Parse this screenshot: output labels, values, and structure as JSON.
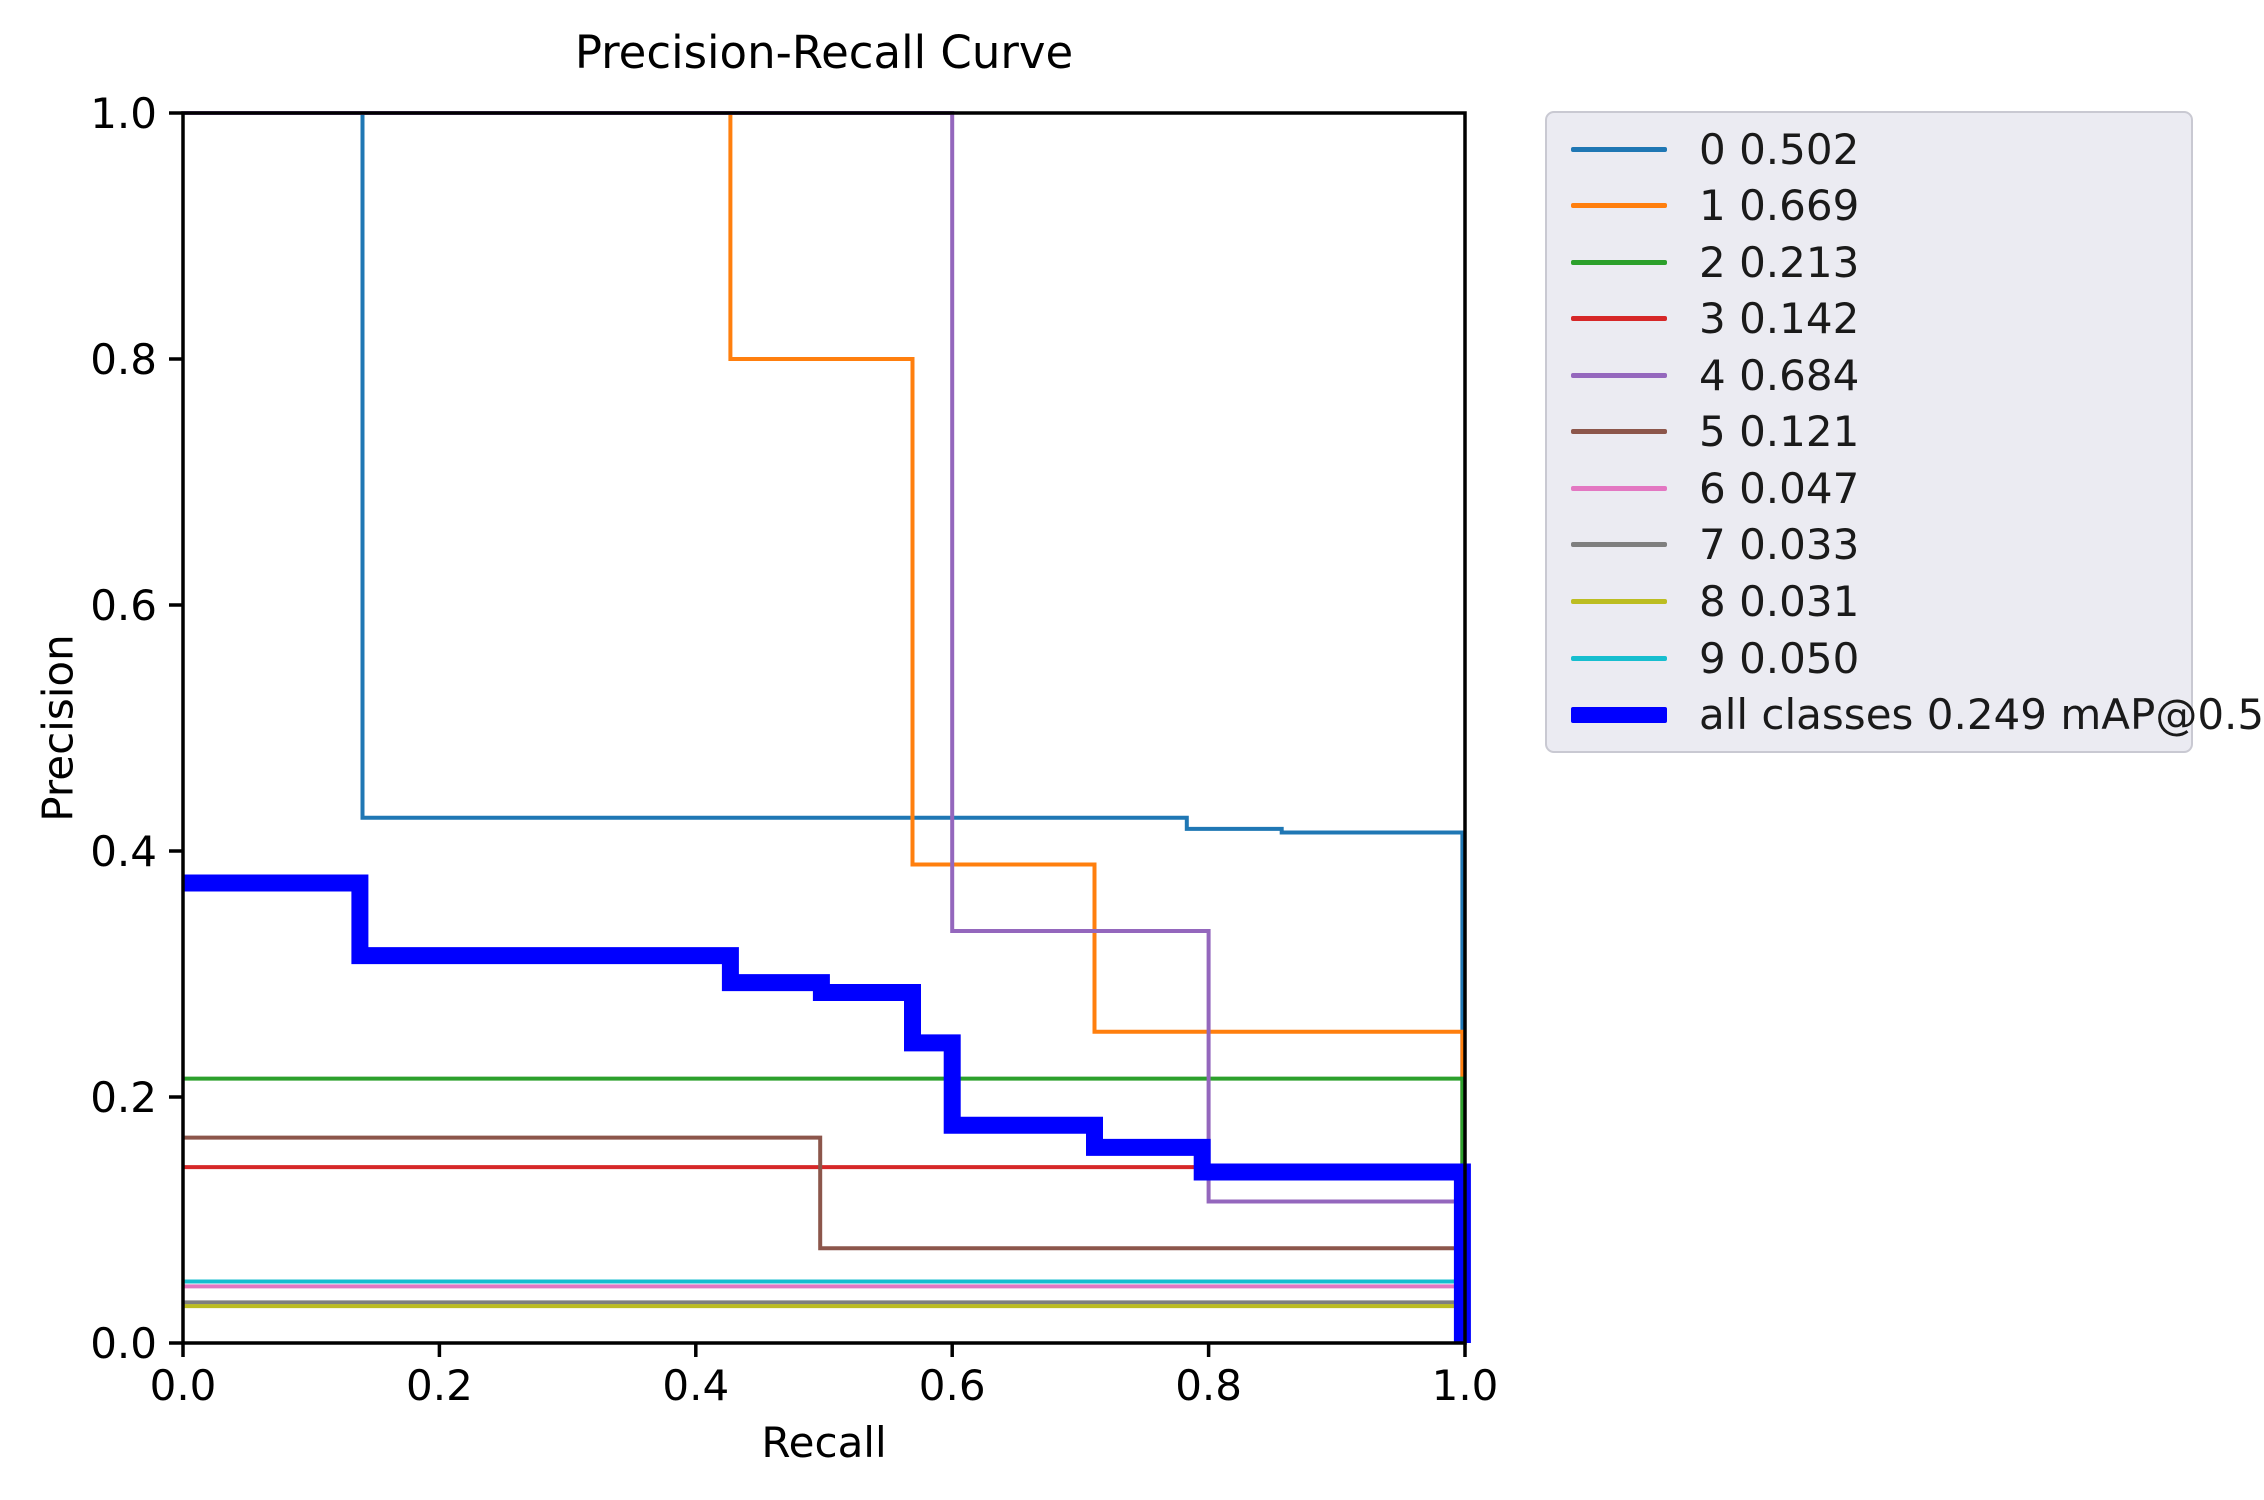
{
  "title": "Precision-Recall Curve",
  "axes": {
    "xlabel": "Recall",
    "ylabel": "Precision",
    "x_ticks": [
      "0.0",
      "0.2",
      "0.4",
      "0.6",
      "0.8",
      "1.0"
    ],
    "y_ticks": [
      "0.0",
      "0.2",
      "0.4",
      "0.6",
      "0.8",
      "1.0"
    ],
    "x_tick_values": [
      0,
      0.2,
      0.4,
      0.6,
      0.8,
      1.0
    ],
    "y_tick_values": [
      0,
      0.2,
      0.4,
      0.6,
      0.8,
      1.0
    ]
  },
  "chart_data": {
    "type": "line",
    "title": "Precision-Recall Curve",
    "xlabel": "Recall",
    "ylabel": "Precision",
    "xlim": [
      0.0,
      1.0
    ],
    "ylim": [
      0.0,
      1.0
    ],
    "grid": false,
    "legend_position": "outside-right",
    "series": [
      {
        "id": "0",
        "name": "0 0.502",
        "class_id": "0",
        "ap": 0.502,
        "color": "#1f77b4",
        "line_width": 4,
        "points": [
          [
            0,
            1.0
          ],
          [
            0.14,
            1.0
          ],
          [
            0.14,
            0.427
          ],
          [
            0.783,
            0.427
          ],
          [
            0.783,
            0.418
          ],
          [
            0.857,
            0.418
          ],
          [
            0.857,
            0.415
          ],
          [
            0.998,
            0.415
          ],
          [
            0.998,
            0
          ]
        ]
      },
      {
        "id": "1",
        "name": "1 0.669",
        "class_id": "1",
        "ap": 0.669,
        "color": "#ff7f0e",
        "line_width": 4,
        "points": [
          [
            0,
            1.0
          ],
          [
            0.427,
            1.0
          ],
          [
            0.427,
            0.8
          ],
          [
            0.569,
            0.8
          ],
          [
            0.569,
            0.389
          ],
          [
            0.711,
            0.389
          ],
          [
            0.711,
            0.253
          ],
          [
            0.998,
            0.253
          ],
          [
            0.998,
            0
          ]
        ]
      },
      {
        "id": "2",
        "name": "2 0.213",
        "class_id": "2",
        "ap": 0.213,
        "color": "#2ca02c",
        "line_width": 4,
        "points": [
          [
            0,
            0.215
          ],
          [
            0.998,
            0.215
          ],
          [
            0.998,
            0
          ]
        ]
      },
      {
        "id": "3",
        "name": "3 0.142",
        "class_id": "3",
        "ap": 0.142,
        "color": "#d62728",
        "line_width": 4,
        "points": [
          [
            0,
            0.143
          ],
          [
            0.998,
            0.143
          ],
          [
            0.998,
            0
          ]
        ]
      },
      {
        "id": "4",
        "name": "4 0.684",
        "class_id": "4",
        "ap": 0.684,
        "color": "#9467bd",
        "line_width": 4,
        "points": [
          [
            0,
            1.0
          ],
          [
            0.6,
            1.0
          ],
          [
            0.6,
            0.335
          ],
          [
            0.8,
            0.335
          ],
          [
            0.8,
            0.115
          ],
          [
            0.998,
            0.115
          ],
          [
            0.998,
            0
          ]
        ]
      },
      {
        "id": "5",
        "name": "5 0.121",
        "class_id": "5",
        "ap": 0.121,
        "color": "#8c564b",
        "line_width": 4,
        "points": [
          [
            0,
            0.167
          ],
          [
            0.497,
            0.167
          ],
          [
            0.497,
            0.077
          ],
          [
            0.998,
            0.077
          ],
          [
            0.998,
            0
          ]
        ]
      },
      {
        "id": "6",
        "name": "6 0.047",
        "class_id": "6",
        "ap": 0.047,
        "color": "#e377c2",
        "line_width": 4,
        "points": [
          [
            0,
            0.046
          ],
          [
            0.998,
            0.046
          ],
          [
            0.998,
            0
          ]
        ]
      },
      {
        "id": "7",
        "name": "7 0.033",
        "class_id": "7",
        "ap": 0.033,
        "color": "#7f7f7f",
        "line_width": 4,
        "points": [
          [
            0,
            0.033
          ],
          [
            0.998,
            0.033
          ],
          [
            0.998,
            0
          ]
        ]
      },
      {
        "id": "8",
        "name": "8 0.031",
        "class_id": "8",
        "ap": 0.031,
        "color": "#bcbd22",
        "line_width": 4,
        "points": [
          [
            0,
            0.03
          ],
          [
            0.998,
            0.03
          ],
          [
            0.998,
            0
          ]
        ]
      },
      {
        "id": "9",
        "name": "9 0.050",
        "class_id": "9",
        "ap": 0.05,
        "color": "#17becf",
        "line_width": 4,
        "points": [
          [
            0,
            0.05
          ],
          [
            0.998,
            0.05
          ],
          [
            0.998,
            0
          ]
        ]
      },
      {
        "id": "all",
        "name": "all classes 0.249 mAP@0.5",
        "class_id": "all classes",
        "ap": 0.249,
        "map_at": "mAP@0.5",
        "color": "#0000ff",
        "line_width": 17,
        "points": [
          [
            0,
            0.374
          ],
          [
            0.138,
            0.374
          ],
          [
            0.138,
            0.315
          ],
          [
            0.427,
            0.315
          ],
          [
            0.427,
            0.293
          ],
          [
            0.498,
            0.293
          ],
          [
            0.498,
            0.285
          ],
          [
            0.569,
            0.285
          ],
          [
            0.569,
            0.244
          ],
          [
            0.6,
            0.244
          ],
          [
            0.6,
            0.177
          ],
          [
            0.711,
            0.177
          ],
          [
            0.711,
            0.159
          ],
          [
            0.795,
            0.159
          ],
          [
            0.795,
            0.139
          ],
          [
            0.998,
            0.139
          ],
          [
            0.998,
            0
          ]
        ]
      }
    ]
  },
  "colors": {
    "background": "#ffffff",
    "spine": "#000000",
    "legend_bg": "#ebebf2",
    "legend_border": "#c9c9d2",
    "text": "#000000"
  }
}
